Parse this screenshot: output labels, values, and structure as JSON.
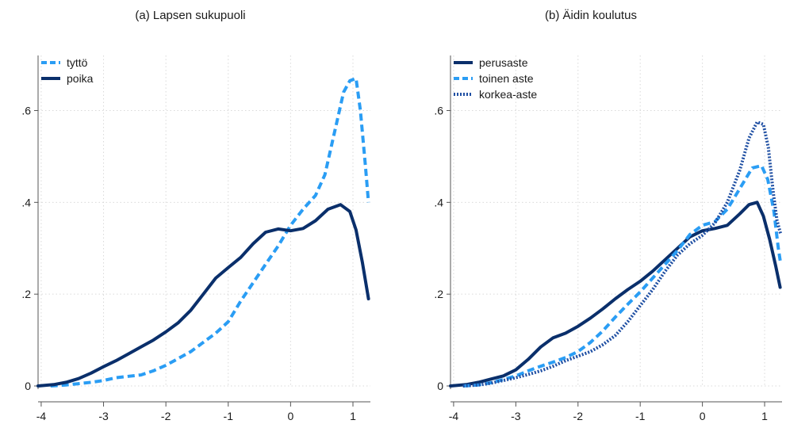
{
  "chart_data": [
    {
      "type": "line",
      "title": "(a) Lapsen sukupuoli",
      "xlabel": "",
      "ylabel": "",
      "xlim": [
        -4.05,
        1.28
      ],
      "ylim": [
        0,
        0.72
      ],
      "xticks": [
        -4,
        -3,
        -2,
        -1,
        0,
        1
      ],
      "xtick_labels": [
        "-4",
        "-3",
        "-2",
        "-1",
        "0",
        "1"
      ],
      "yticks": [
        0,
        0.2,
        0.4,
        0.6
      ],
      "ytick_labels": [
        "0",
        ".2",
        ".4",
        ".6"
      ],
      "grid": true,
      "legend_position": "top-left",
      "series": [
        {
          "name": "tyttö",
          "color": "#2a9df4",
          "dash": "dashed",
          "points": [
            [
              -3.85,
              0.0
            ],
            [
              -3.6,
              0.002
            ],
            [
              -3.4,
              0.005
            ],
            [
              -3.2,
              0.008
            ],
            [
              -3.0,
              0.012
            ],
            [
              -2.8,
              0.018
            ],
            [
              -2.6,
              0.021
            ],
            [
              -2.4,
              0.024
            ],
            [
              -2.2,
              0.033
            ],
            [
              -2.0,
              0.045
            ],
            [
              -1.8,
              0.06
            ],
            [
              -1.6,
              0.075
            ],
            [
              -1.4,
              0.095
            ],
            [
              -1.2,
              0.115
            ],
            [
              -1.0,
              0.14
            ],
            [
              -0.8,
              0.185
            ],
            [
              -0.6,
              0.225
            ],
            [
              -0.4,
              0.265
            ],
            [
              -0.2,
              0.305
            ],
            [
              0.0,
              0.35
            ],
            [
              0.2,
              0.385
            ],
            [
              0.4,
              0.415
            ],
            [
              0.55,
              0.46
            ],
            [
              0.7,
              0.55
            ],
            [
              0.85,
              0.64
            ],
            [
              0.95,
              0.665
            ],
            [
              1.05,
              0.67
            ],
            [
              1.12,
              0.6
            ],
            [
              1.2,
              0.48
            ],
            [
              1.25,
              0.4
            ]
          ]
        },
        {
          "name": "poika",
          "color": "#0a2f6b",
          "dash": "solid",
          "points": [
            [
              -4.05,
              0.0
            ],
            [
              -3.8,
              0.003
            ],
            [
              -3.6,
              0.008
            ],
            [
              -3.4,
              0.016
            ],
            [
              -3.2,
              0.028
            ],
            [
              -3.0,
              0.042
            ],
            [
              -2.8,
              0.055
            ],
            [
              -2.6,
              0.07
            ],
            [
              -2.4,
              0.085
            ],
            [
              -2.2,
              0.1
            ],
            [
              -2.0,
              0.118
            ],
            [
              -1.8,
              0.138
            ],
            [
              -1.6,
              0.165
            ],
            [
              -1.4,
              0.2
            ],
            [
              -1.2,
              0.235
            ],
            [
              -1.0,
              0.258
            ],
            [
              -0.8,
              0.28
            ],
            [
              -0.6,
              0.31
            ],
            [
              -0.4,
              0.335
            ],
            [
              -0.2,
              0.342
            ],
            [
              0.0,
              0.338
            ],
            [
              0.2,
              0.343
            ],
            [
              0.4,
              0.36
            ],
            [
              0.6,
              0.385
            ],
            [
              0.8,
              0.395
            ],
            [
              0.95,
              0.38
            ],
            [
              1.05,
              0.34
            ],
            [
              1.15,
              0.27
            ],
            [
              1.25,
              0.19
            ]
          ]
        }
      ]
    },
    {
      "type": "line",
      "title": "(b) Äidin koulutus",
      "xlabel": "",
      "ylabel": "",
      "xlim": [
        -4.05,
        1.28
      ],
      "ylim": [
        0,
        0.72
      ],
      "xticks": [
        -4,
        -3,
        -2,
        -1,
        0,
        1
      ],
      "xtick_labels": [
        "-4",
        "-3",
        "-2",
        "-1",
        "0",
        "1"
      ],
      "yticks": [
        0,
        0.2,
        0.4,
        0.6
      ],
      "ytick_labels": [
        "0",
        ".2",
        ".4",
        ".6"
      ],
      "grid": true,
      "legend_position": "top-left",
      "series": [
        {
          "name": "perusaste",
          "color": "#0a2f6b",
          "dash": "solid",
          "points": [
            [
              -4.05,
              0.0
            ],
            [
              -3.8,
              0.003
            ],
            [
              -3.6,
              0.008
            ],
            [
              -3.4,
              0.015
            ],
            [
              -3.2,
              0.022
            ],
            [
              -3.0,
              0.035
            ],
            [
              -2.8,
              0.058
            ],
            [
              -2.6,
              0.085
            ],
            [
              -2.4,
              0.105
            ],
            [
              -2.2,
              0.115
            ],
            [
              -2.0,
              0.13
            ],
            [
              -1.8,
              0.148
            ],
            [
              -1.6,
              0.168
            ],
            [
              -1.4,
              0.19
            ],
            [
              -1.2,
              0.21
            ],
            [
              -1.0,
              0.228
            ],
            [
              -0.8,
              0.25
            ],
            [
              -0.6,
              0.275
            ],
            [
              -0.4,
              0.3
            ],
            [
              -0.2,
              0.325
            ],
            [
              0.0,
              0.338
            ],
            [
              0.2,
              0.343
            ],
            [
              0.4,
              0.35
            ],
            [
              0.6,
              0.375
            ],
            [
              0.75,
              0.395
            ],
            [
              0.88,
              0.4
            ],
            [
              0.98,
              0.37
            ],
            [
              1.08,
              0.32
            ],
            [
              1.18,
              0.26
            ],
            [
              1.25,
              0.215
            ]
          ]
        },
        {
          "name": "toinen aste",
          "color": "#2a9df4",
          "dash": "dashed",
          "points": [
            [
              -3.85,
              0.0
            ],
            [
              -3.6,
              0.002
            ],
            [
              -3.4,
              0.007
            ],
            [
              -3.2,
              0.014
            ],
            [
              -3.0,
              0.022
            ],
            [
              -2.8,
              0.033
            ],
            [
              -2.6,
              0.043
            ],
            [
              -2.4,
              0.052
            ],
            [
              -2.2,
              0.062
            ],
            [
              -2.0,
              0.075
            ],
            [
              -1.8,
              0.095
            ],
            [
              -1.6,
              0.12
            ],
            [
              -1.4,
              0.15
            ],
            [
              -1.2,
              0.178
            ],
            [
              -1.0,
              0.205
            ],
            [
              -0.8,
              0.235
            ],
            [
              -0.6,
              0.265
            ],
            [
              -0.4,
              0.295
            ],
            [
              -0.2,
              0.33
            ],
            [
              0.0,
              0.35
            ],
            [
              0.2,
              0.358
            ],
            [
              0.4,
              0.385
            ],
            [
              0.6,
              0.43
            ],
            [
              0.8,
              0.475
            ],
            [
              0.95,
              0.48
            ],
            [
              1.05,
              0.45
            ],
            [
              1.15,
              0.38
            ],
            [
              1.22,
              0.3
            ],
            [
              1.26,
              0.265
            ]
          ]
        },
        {
          "name": "korkea-aste",
          "color": "#1f4fa3",
          "dash": "dotted",
          "points": [
            [
              -3.85,
              0.0
            ],
            [
              -3.6,
              0.002
            ],
            [
              -3.4,
              0.006
            ],
            [
              -3.2,
              0.012
            ],
            [
              -3.0,
              0.018
            ],
            [
              -2.8,
              0.025
            ],
            [
              -2.6,
              0.033
            ],
            [
              -2.4,
              0.043
            ],
            [
              -2.2,
              0.055
            ],
            [
              -2.0,
              0.065
            ],
            [
              -1.8,
              0.075
            ],
            [
              -1.6,
              0.09
            ],
            [
              -1.4,
              0.11
            ],
            [
              -1.2,
              0.14
            ],
            [
              -1.0,
              0.175
            ],
            [
              -0.8,
              0.21
            ],
            [
              -0.6,
              0.25
            ],
            [
              -0.4,
              0.285
            ],
            [
              -0.2,
              0.31
            ],
            [
              0.0,
              0.328
            ],
            [
              0.2,
              0.355
            ],
            [
              0.4,
              0.4
            ],
            [
              0.6,
              0.47
            ],
            [
              0.75,
              0.54
            ],
            [
              0.88,
              0.575
            ],
            [
              0.98,
              0.57
            ],
            [
              1.06,
              0.52
            ],
            [
              1.14,
              0.42
            ],
            [
              1.2,
              0.36
            ],
            [
              1.26,
              0.33
            ]
          ]
        }
      ]
    }
  ]
}
